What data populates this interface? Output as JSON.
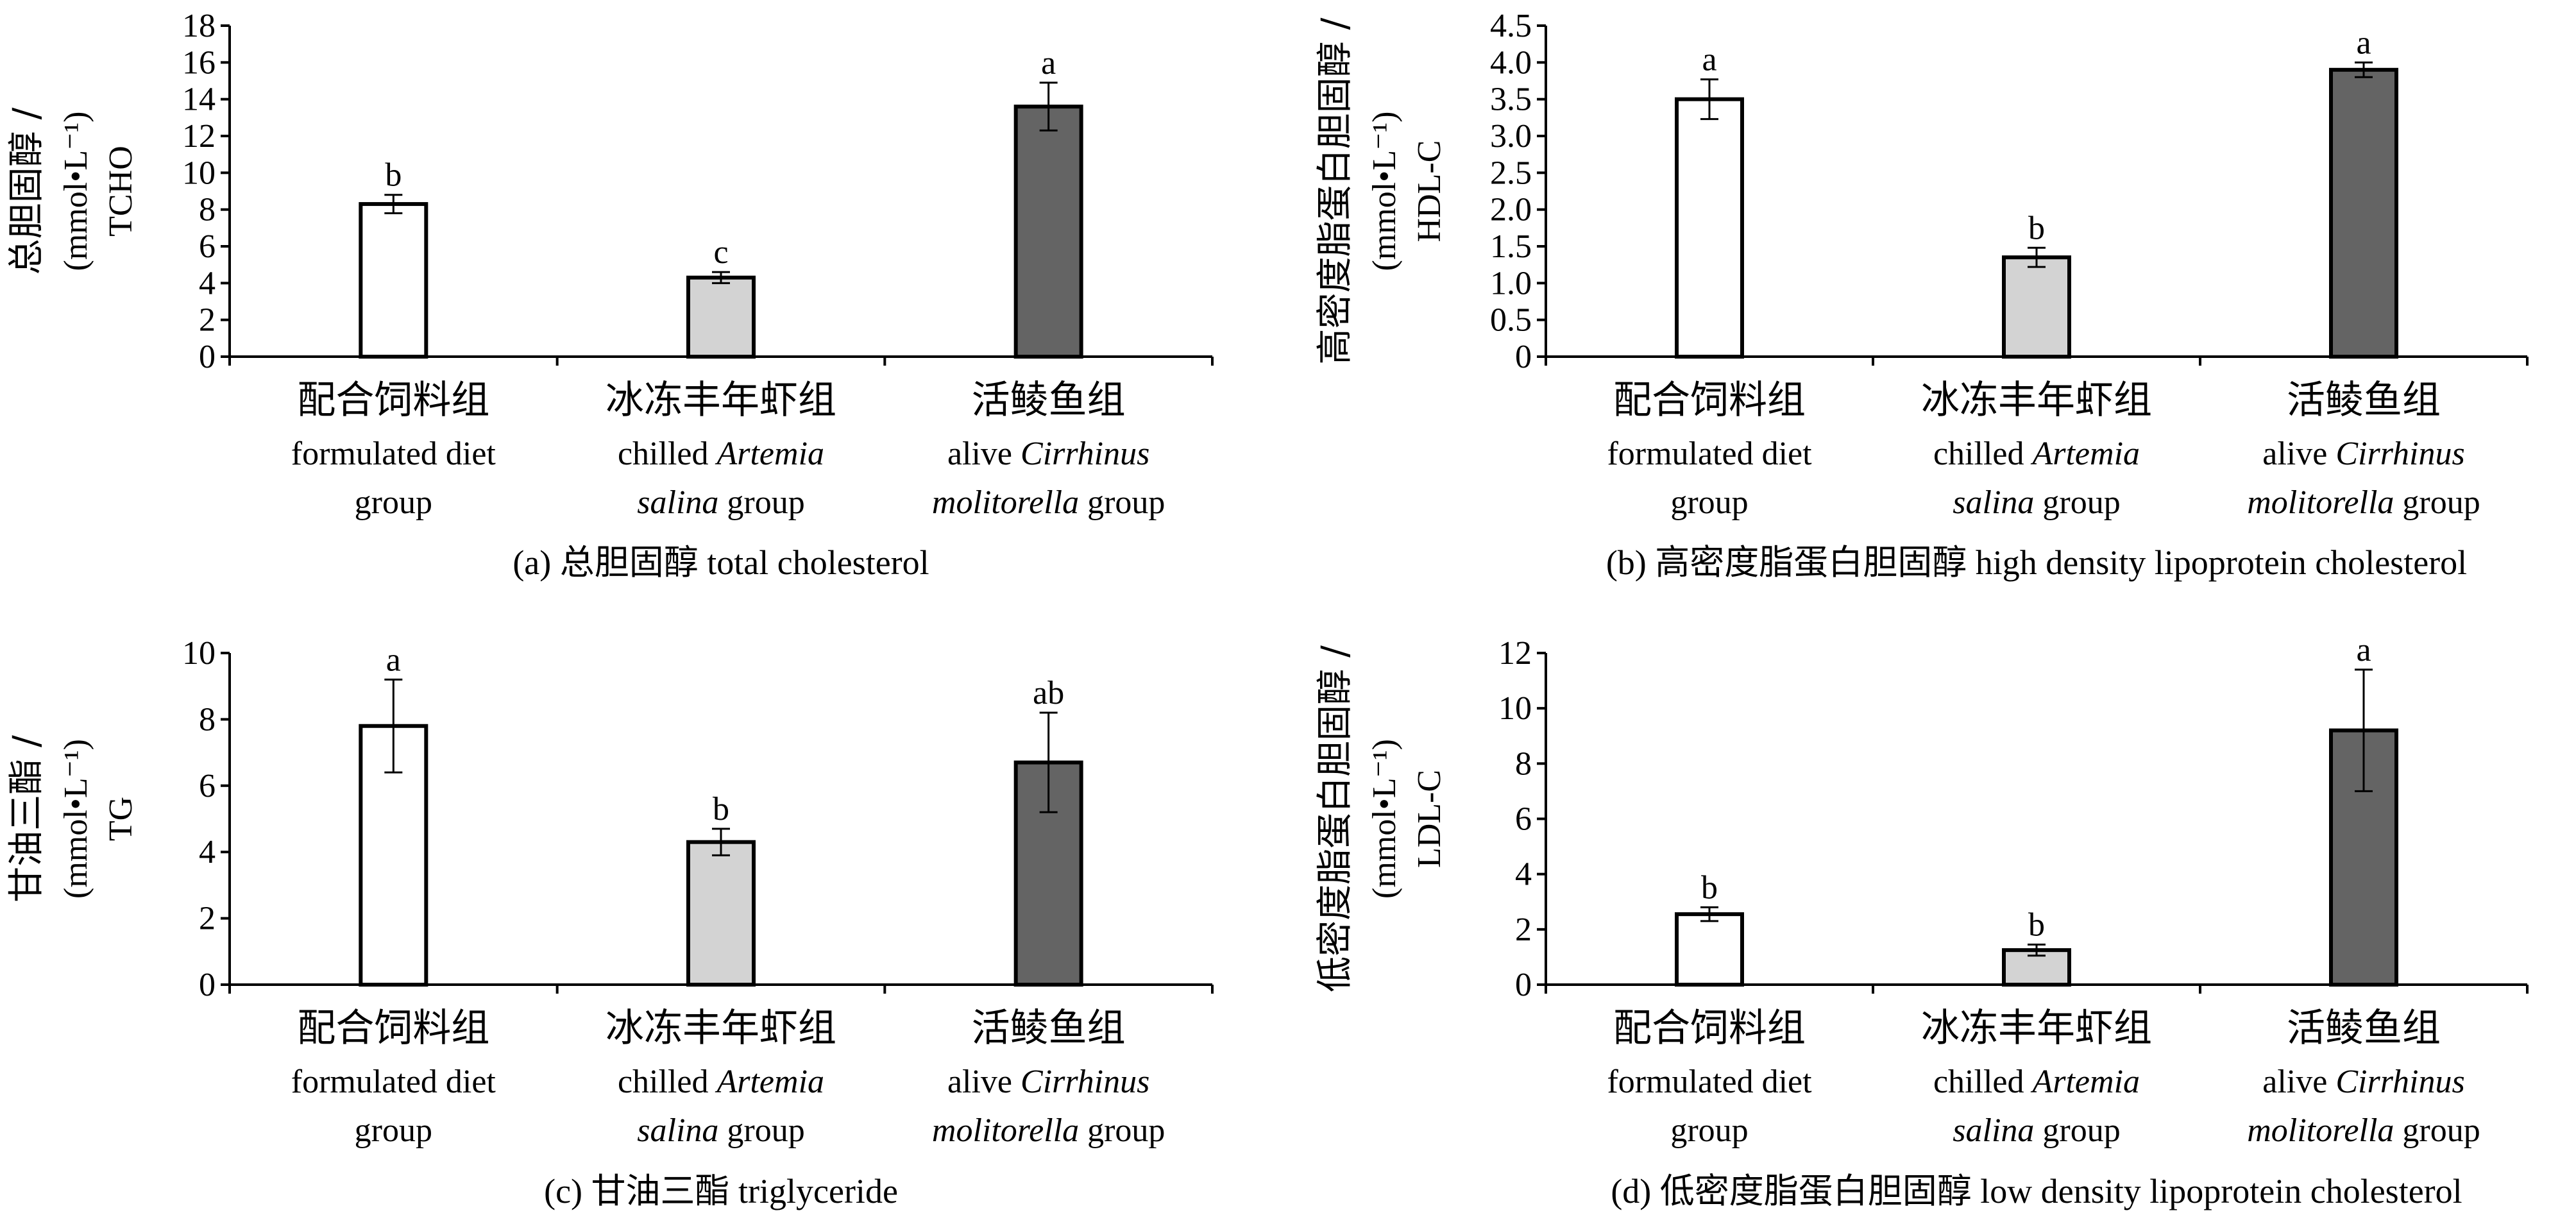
{
  "chart_data": [
    {
      "type": "bar",
      "caption": "(a) 总胆固醇 total cholesterol",
      "ylabel": [
        "总胆固醇 /",
        "(mmol•L⁻¹)",
        "TCHO"
      ],
      "ylim": [
        0,
        18
      ],
      "yticks": [
        "0",
        "2",
        "4",
        "6",
        "8",
        "10",
        "12",
        "14",
        "16",
        "18"
      ],
      "categories": [
        {
          "cn": "配合饲料组",
          "en1": "formulated diet",
          "en1_it": "",
          "en2": "group",
          "en2_it": ""
        },
        {
          "cn": "冰冻丰年虾组",
          "en1": "chilled ",
          "en1_it": "Artemia",
          "en2": " group",
          "en2_it": "salina"
        },
        {
          "cn": "活鲮鱼组",
          "en1": "alive ",
          "en1_it": "Cirrhinus",
          "en2": " group",
          "en2_it": "molitorella"
        }
      ],
      "values": [
        8.3,
        4.3,
        13.6
      ],
      "errors": [
        0.5,
        0.3,
        1.3
      ],
      "labels": [
        "b",
        "c",
        "a"
      ],
      "colors": [
        "#ffffff",
        "#d3d3d3",
        "#646464"
      ]
    },
    {
      "type": "bar",
      "caption": "(b) 高密度脂蛋白胆固醇 high density lipoprotein cholesterol",
      "ylabel": [
        "高密度脂蛋白胆固醇 /",
        "(mmol•L⁻¹)",
        "HDL-C"
      ],
      "ylim": [
        0,
        4.5
      ],
      "yticks": [
        "0",
        "0.5",
        "1.0",
        "1.5",
        "2.0",
        "2.5",
        "3.0",
        "3.5",
        "4.0",
        "4.5"
      ],
      "categories": [
        {
          "cn": "配合饲料组",
          "en1": "formulated diet",
          "en1_it": "",
          "en2": "group",
          "en2_it": ""
        },
        {
          "cn": "冰冻丰年虾组",
          "en1": "chilled ",
          "en1_it": "Artemia",
          "en2": " group",
          "en2_it": "salina"
        },
        {
          "cn": "活鲮鱼组",
          "en1": "alive ",
          "en1_it": "Cirrhinus",
          "en2": " group",
          "en2_it": "molitorella"
        }
      ],
      "values": [
        3.5,
        1.35,
        3.9
      ],
      "errors": [
        0.27,
        0.13,
        0.1
      ],
      "labels": [
        "a",
        "b",
        "a"
      ],
      "colors": [
        "#ffffff",
        "#d3d3d3",
        "#646464"
      ]
    },
    {
      "type": "bar",
      "caption": "(c) 甘油三酯 triglyceride",
      "ylabel": [
        "甘油三酯 /",
        "(mmol•L⁻¹)",
        "TG"
      ],
      "ylim": [
        0,
        10
      ],
      "yticks": [
        "0",
        "2",
        "4",
        "6",
        "8",
        "10"
      ],
      "categories": [
        {
          "cn": "配合饲料组",
          "en1": "formulated diet",
          "en1_it": "",
          "en2": "group",
          "en2_it": ""
        },
        {
          "cn": "冰冻丰年虾组",
          "en1": "chilled ",
          "en1_it": "Artemia",
          "en2": " group",
          "en2_it": "salina"
        },
        {
          "cn": "活鲮鱼组",
          "en1": "alive ",
          "en1_it": "Cirrhinus",
          "en2": " group",
          "en2_it": "molitorella"
        }
      ],
      "values": [
        7.8,
        4.3,
        6.7
      ],
      "errors": [
        1.4,
        0.4,
        1.5
      ],
      "labels": [
        "a",
        "b",
        "ab"
      ],
      "colors": [
        "#ffffff",
        "#d3d3d3",
        "#646464"
      ]
    },
    {
      "type": "bar",
      "caption": "(d) 低密度脂蛋白胆固醇 low density lipoprotein cholesterol",
      "ylabel": [
        "低密度脂蛋白胆固醇 /",
        "(mmol•L⁻¹)",
        "LDL-C"
      ],
      "ylim": [
        0,
        12
      ],
      "yticks": [
        "0",
        "2",
        "4",
        "6",
        "8",
        "10",
        "12"
      ],
      "categories": [
        {
          "cn": "配合饲料组",
          "en1": "formulated diet",
          "en1_it": "",
          "en2": "group",
          "en2_it": ""
        },
        {
          "cn": "冰冻丰年虾组",
          "en1": "chilled ",
          "en1_it": "Artemia",
          "en2": " group",
          "en2_it": "salina"
        },
        {
          "cn": "活鲮鱼组",
          "en1": "alive ",
          "en1_it": "Cirrhinus",
          "en2": " group",
          "en2_it": "molitorella"
        }
      ],
      "values": [
        2.55,
        1.25,
        9.2
      ],
      "errors": [
        0.25,
        0.2,
        2.2
      ],
      "labels": [
        "b",
        "b",
        "a"
      ],
      "colors": [
        "#ffffff",
        "#d3d3d3",
        "#646464"
      ]
    }
  ]
}
